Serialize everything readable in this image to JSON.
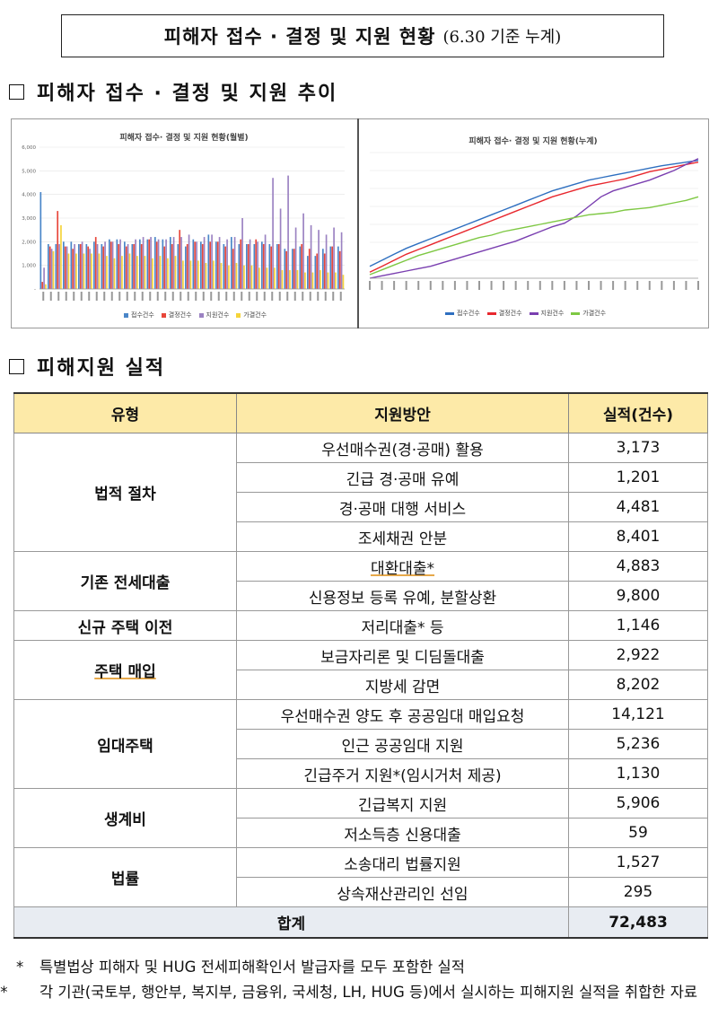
{
  "header": {
    "title": "피해자 접수 · 결정 및 지원 현황",
    "subtitle": "(6.30 기준 누계)"
  },
  "sections": {
    "trend": "피해자 접수 · 결정 및 지원 추이",
    "performance": "피해지원 실적"
  },
  "chart_data": [
    {
      "type": "bar",
      "title": "피해자 접수· 결정 및 지원 현황(월별)",
      "ylim": [
        0,
        6000
      ],
      "yticks": [
        "6,000",
        "5,000",
        "4,000",
        "3,000",
        "2,000",
        "1,000",
        "-"
      ],
      "series": [
        {
          "name": "접수건수",
          "color": "#4a86c8",
          "values": [
            4100,
            1900,
            1900,
            2000,
            2000,
            1900,
            1900,
            2000,
            1900,
            2100,
            2100,
            2000,
            1900,
            2100,
            2100,
            2200,
            2100,
            2200,
            1900,
            1800,
            2100,
            2000,
            2300,
            2000,
            1900,
            2200,
            1900,
            1900,
            1900,
            2000,
            1900,
            1900,
            1700,
            1700,
            1800,
            1400,
            1400,
            1700,
            1800,
            1800
          ]
        },
        {
          "name": "결정건수",
          "color": "#e8463a",
          "values": [
            300,
            1800,
            3300,
            1800,
            1700,
            1900,
            1800,
            2200,
            1800,
            2000,
            1900,
            1800,
            1900,
            1900,
            2100,
            2000,
            1800,
            1900,
            2500,
            1900,
            2000,
            1900,
            2000,
            2000,
            1800,
            1700,
            2100,
            1900,
            2100,
            1900,
            1800,
            1900,
            1600,
            1700,
            1900,
            1700,
            1500,
            1500,
            1800,
            1600
          ]
        },
        {
          "name": "지원건수",
          "color": "#9b82c2",
          "values": [
            900,
            1700,
            1900,
            1800,
            1900,
            2000,
            1700,
            1900,
            2000,
            2000,
            2100,
            1900,
            2100,
            2200,
            2200,
            2100,
            2100,
            2200,
            2200,
            2300,
            2000,
            2200,
            2300,
            2200,
            2100,
            2200,
            3000,
            2100,
            2000,
            2300,
            4700,
            3400,
            4800,
            2600,
            3200,
            2700,
            2500,
            2300,
            2600,
            2400
          ]
        },
        {
          "name": "가결건수",
          "color": "#f5d43a",
          "values": [
            200,
            1600,
            2700,
            1500,
            1500,
            1500,
            1500,
            1500,
            1400,
            1300,
            1400,
            1500,
            1400,
            1400,
            1300,
            1400,
            1300,
            1400,
            1200,
            1200,
            1200,
            1100,
            1200,
            1100,
            1000,
            1100,
            1000,
            1000,
            900,
            900,
            900,
            800,
            800,
            800,
            700,
            700,
            800,
            700,
            700,
            600
          ]
        }
      ]
    },
    {
      "type": "line",
      "title": "피해자 접수· 결정 및 지원 현황(누계)",
      "series": [
        {
          "name": "접수건수",
          "color": "#2e6fc0",
          "values": [
            10,
            15,
            20,
            25,
            29,
            33,
            37,
            41,
            45,
            49,
            53,
            57,
            61,
            65,
            69,
            73,
            76,
            79,
            82,
            84,
            86,
            88,
            90,
            92,
            94,
            95.5,
            97,
            98.5
          ]
        },
        {
          "name": "결정건수",
          "color": "#e8282e",
          "values": [
            5,
            10,
            15,
            20,
            24,
            28,
            32,
            36,
            40,
            44,
            48,
            52,
            56,
            60,
            64,
            68,
            71,
            74,
            77,
            79,
            81,
            83,
            86,
            89,
            91,
            93,
            95,
            97
          ]
        },
        {
          "name": "지원건수",
          "color": "#7a3fb0",
          "values": [
            0,
            2,
            4,
            6,
            8,
            10,
            13,
            16,
            19,
            22,
            25,
            28,
            31,
            35,
            39,
            43,
            46,
            52,
            60,
            68,
            73,
            76,
            79,
            82,
            86,
            90,
            95,
            100
          ]
        },
        {
          "name": "가결건수",
          "color": "#7ec843",
          "values": [
            3,
            7,
            11,
            15,
            19,
            22,
            25,
            28,
            31,
            34,
            36,
            39,
            41,
            43,
            45,
            47,
            49,
            51,
            53,
            54,
            55,
            57,
            58,
            59,
            61,
            63,
            65,
            68
          ]
        }
      ]
    }
  ],
  "table": {
    "headers": [
      "유형",
      "지원방안",
      "실적(건수)"
    ],
    "groups": [
      {
        "type": "법적 절차",
        "rows": [
          {
            "measure": "우선매수권(경·공매) 활용",
            "count": "3,173"
          },
          {
            "measure": "긴급 경·공매 유예",
            "count": "1,201"
          },
          {
            "measure": "경·공매 대행 서비스",
            "count": "4,481"
          },
          {
            "measure": "조세채권 안분",
            "count": "8,401"
          }
        ]
      },
      {
        "type": "기존 전세대출",
        "rows": [
          {
            "measure": "대환대출*",
            "count": "4,883"
          },
          {
            "measure": "신용정보 등록 유예, 분할상환",
            "count": "9,800"
          }
        ]
      },
      {
        "type": "신규 주택 이전",
        "rows": [
          {
            "measure": "저리대출* 등",
            "count": "1,146"
          }
        ]
      },
      {
        "type": "주택 매입",
        "rows": [
          {
            "measure": "보금자리론 및 디딤돌대출",
            "count": "2,922"
          },
          {
            "measure": "지방세 감면",
            "count": "8,202"
          }
        ]
      },
      {
        "type": "임대주택",
        "rows": [
          {
            "measure": "우선매수권 양도 후 공공임대 매입요청",
            "count": "14,121"
          },
          {
            "measure": "인근 공공임대 지원",
            "count": "5,236"
          },
          {
            "measure": "긴급주거 지원*(임시거처 제공)",
            "count": "1,130"
          }
        ]
      },
      {
        "type": "생계비",
        "rows": [
          {
            "measure": "긴급복지 지원",
            "count": "5,906"
          },
          {
            "measure": "저소득층 신용대출",
            "count": "59"
          }
        ]
      },
      {
        "type": "법률",
        "rows": [
          {
            "measure": "소송대리 법률지원",
            "count": "1,527"
          },
          {
            "measure": "상속재산관리인 선임",
            "count": "295"
          }
        ]
      }
    ],
    "total_label": "합계",
    "total_count": "72,483"
  },
  "notes": [
    {
      "mark": "*",
      "text": "특별법상 피해자 및 HUG 전세피해확인서 발급자를 모두 포함한 실적"
    },
    {
      "mark": "**",
      "text": "각 기관(국토부, 행안부, 복지부, 금융위, 국세청, LH, HUG 등)에서 실시하는 피해지원 실적을 취합한 자료"
    }
  ]
}
